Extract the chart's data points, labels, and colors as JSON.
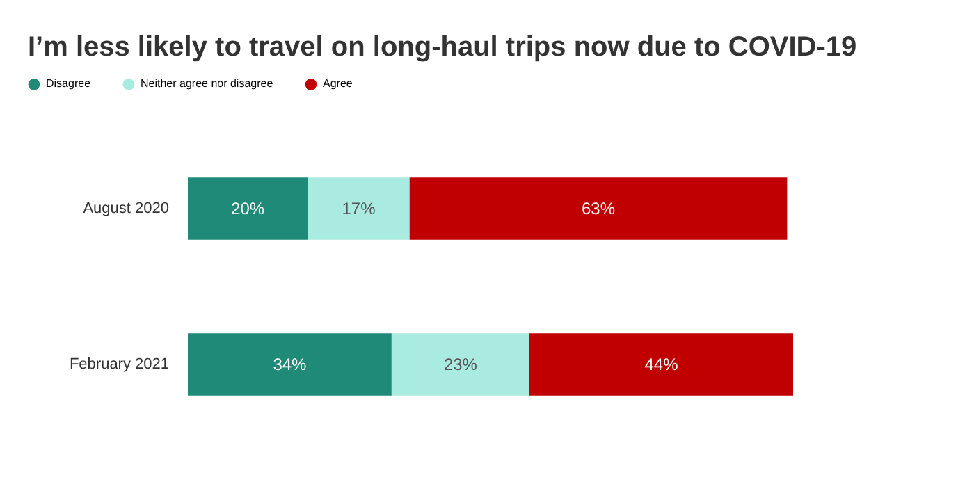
{
  "chart_data": {
    "type": "bar",
    "orientation": "horizontal",
    "stacked": true,
    "title": "I’m less likely to travel on long-haul trips now due to COVID-19",
    "categories": [
      "August 2020",
      "February 2021"
    ],
    "legend": "top left",
    "series": [
      {
        "name": "Disagree",
        "color": "#1f8a78",
        "values": [
          20,
          34
        ],
        "value_labels": [
          "20%",
          "34%"
        ]
      },
      {
        "name": "Neither agree nor disagree",
        "color": "#a9ebe1",
        "values": [
          17,
          23
        ],
        "value_labels": [
          "17%",
          "23%"
        ]
      },
      {
        "name": "Agree",
        "color": "#c00000",
        "values": [
          63,
          44
        ],
        "value_labels": [
          "63%",
          "44%"
        ]
      }
    ]
  }
}
